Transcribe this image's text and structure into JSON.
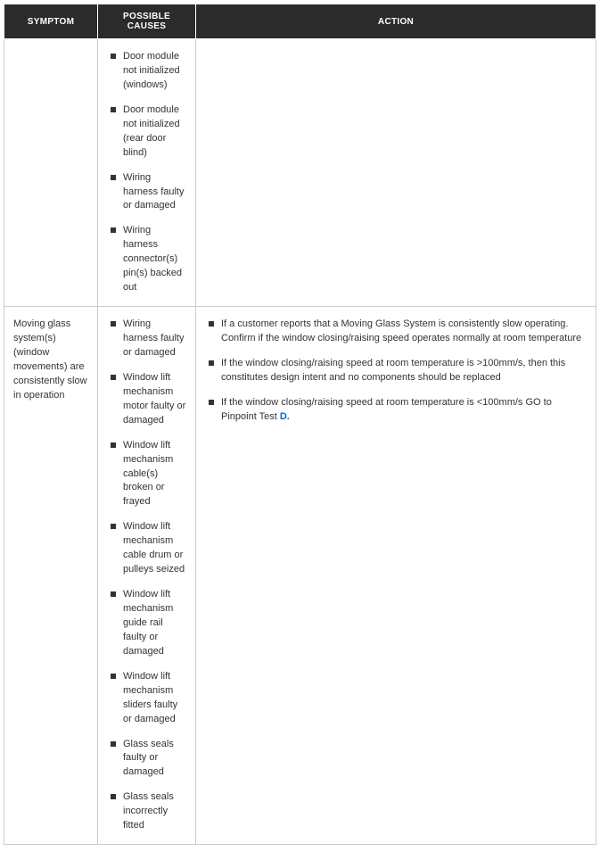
{
  "headers": {
    "symptom": "SYMPTOM",
    "causes": "POSSIBLE CAUSES",
    "action": "ACTION"
  },
  "rows": [
    {
      "symptom": "",
      "causes": [
        "Door module not initialized (windows)",
        "Door module not initialized (rear door blind)",
        "Wiring harness faulty or damaged",
        "Wiring harness connector(s) pin(s) backed out"
      ],
      "actions": []
    },
    {
      "symptom": "Moving glass system(s) (window movements) are consistently slow in operation",
      "causes": [
        "Wiring harness faulty or damaged",
        "Window lift mechanism motor faulty or damaged",
        "Window lift mechanism cable(s) broken or frayed",
        "Window lift mechanism cable drum or pulleys seized",
        "Window lift mechanism guide rail faulty or damaged",
        "Window lift mechanism sliders faulty or damaged",
        "Glass seals faulty or damaged",
        "Glass seals incorrectly fitted"
      ],
      "actions": [
        {
          "text": "If a customer reports that a Moving Glass System is consistently slow operating. Confirm if the window closing/raising speed operates normally at room temperature"
        },
        {
          "text": "If the window closing/raising speed at room temperature is >100mm/s, then this constitutes design intent and no components should be replaced"
        },
        {
          "text_prefix": "If the window closing/raising speed at room temperature is <100mm/s GO to Pinpoint Test ",
          "link_text": "D.",
          "text_suffix": ""
        }
      ]
    }
  ]
}
